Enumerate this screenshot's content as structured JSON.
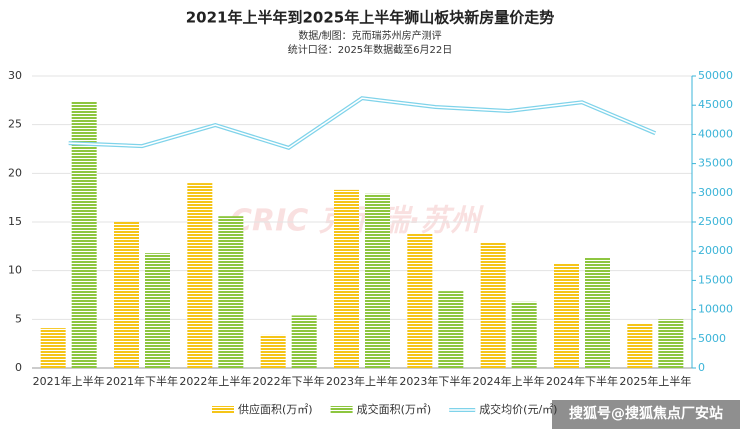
{
  "chart_data": {
    "type": "bar_line",
    "title": "2021年上半年到2025年上半年狮山板块新房量价走势",
    "subtitle": [
      "数据/制图：克而瑞苏州房产测评",
      "统计口径：2025年数据截至6月22日"
    ],
    "watermark": "CRIC 克而瑞·苏州",
    "source": "搜狐号@搜狐焦点厂安站",
    "categories": [
      "2021年上半年",
      "2021年下半年",
      "2022年上半年",
      "2022年下半年",
      "2023年上半年",
      "2023年下半年",
      "2024年上半年",
      "2024年下半年",
      "2025年上半年"
    ],
    "series": [
      {
        "name": "供应面积(万㎡)",
        "color": "#f5c518",
        "kind": "bar",
        "values": [
          4.1,
          15.0,
          19.0,
          3.4,
          18.3,
          13.8,
          12.9,
          10.7,
          4.6
        ]
      },
      {
        "name": "成交面积(万㎡)",
        "color": "#8dc63f",
        "kind": "bar",
        "values": [
          27.4,
          11.8,
          15.6,
          5.4,
          17.9,
          7.9,
          6.8,
          11.3,
          5.0
        ]
      },
      {
        "name": "成交均价(元/㎡)",
        "color": "#7fd3ea",
        "kind": "line",
        "axis": "y2",
        "values": [
          38500,
          38000,
          41600,
          37700,
          46200,
          44700,
          44000,
          45500,
          40200
        ]
      }
    ],
    "ylim": [
      0,
      30
    ],
    "yticks": [
      0,
      5,
      10,
      15,
      20,
      25,
      30
    ],
    "y2lim": [
      0,
      50000
    ],
    "y2ticks": [
      0,
      5000,
      10000,
      15000,
      20000,
      25000,
      30000,
      35000,
      40000,
      45000,
      50000
    ],
    "grid": true,
    "legend": "bottom"
  }
}
